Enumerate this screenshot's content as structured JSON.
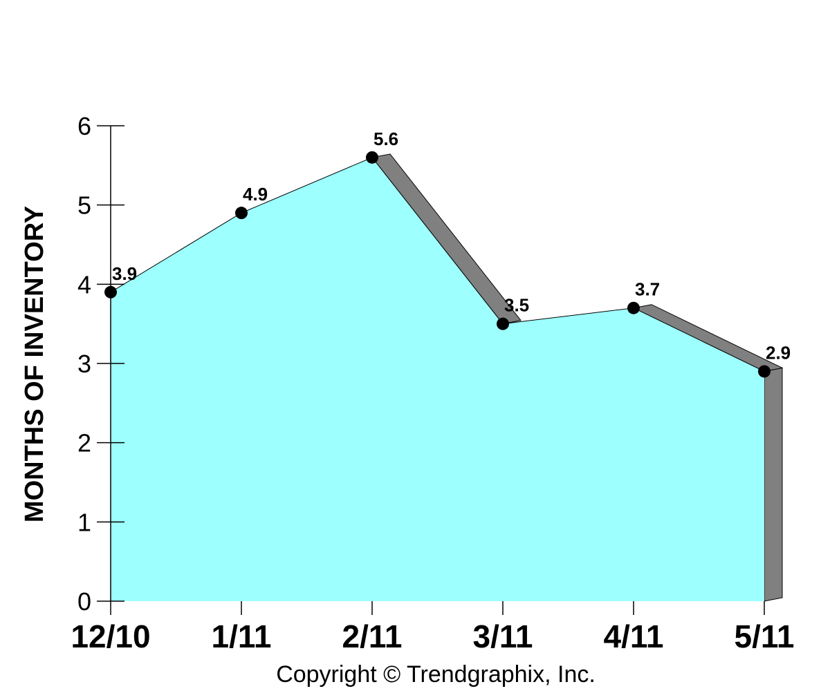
{
  "chart_data": {
    "type": "area",
    "categories": [
      "12/10",
      "1/11",
      "2/11",
      "3/11",
      "4/11",
      "5/11"
    ],
    "values": [
      3.9,
      4.9,
      5.6,
      3.5,
      3.7,
      2.9
    ],
    "data_labels": [
      "3.9",
      "4.9",
      "5.6",
      "3.5",
      "3.7",
      "2.9"
    ],
    "ylabel": "MONTHS OF INVENTORY",
    "xlabel": "",
    "ylim": [
      0,
      6
    ],
    "yticks": [
      "0",
      "1",
      "2",
      "3",
      "4",
      "5",
      "6"
    ],
    "grid": false,
    "legend": "none",
    "colors": {
      "fill": "#9EFFFF",
      "shadow": "#808080",
      "marker": "#000000"
    }
  },
  "footer": {
    "copyright": "Copyright © Trendgraphix, Inc."
  }
}
